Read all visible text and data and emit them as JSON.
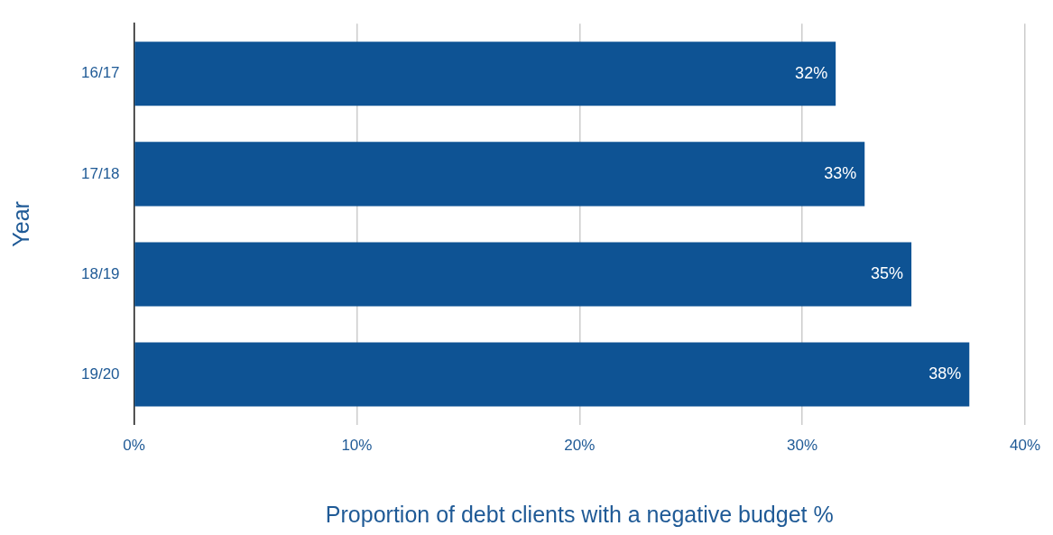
{
  "chart_data": {
    "type": "bar",
    "orientation": "horizontal",
    "categories": [
      "16/17",
      "17/18",
      "18/19",
      "19/20"
    ],
    "values": [
      31.5,
      32.8,
      34.9,
      37.5
    ],
    "value_labels": [
      "32%",
      "33%",
      "35%",
      "38%"
    ],
    "color": "#0e5394",
    "xlim": [
      0,
      40
    ],
    "xticks": [
      {
        "value": 0,
        "label": "0%"
      },
      {
        "value": 10,
        "label": "10%"
      },
      {
        "value": 20,
        "label": "20%"
      },
      {
        "value": 30,
        "label": "30%"
      },
      {
        "value": 40,
        "label": "40%"
      }
    ],
    "xlabel": "Proportion of debt clients with a negative budget %",
    "ylabel": "Year",
    "grid": "x"
  }
}
